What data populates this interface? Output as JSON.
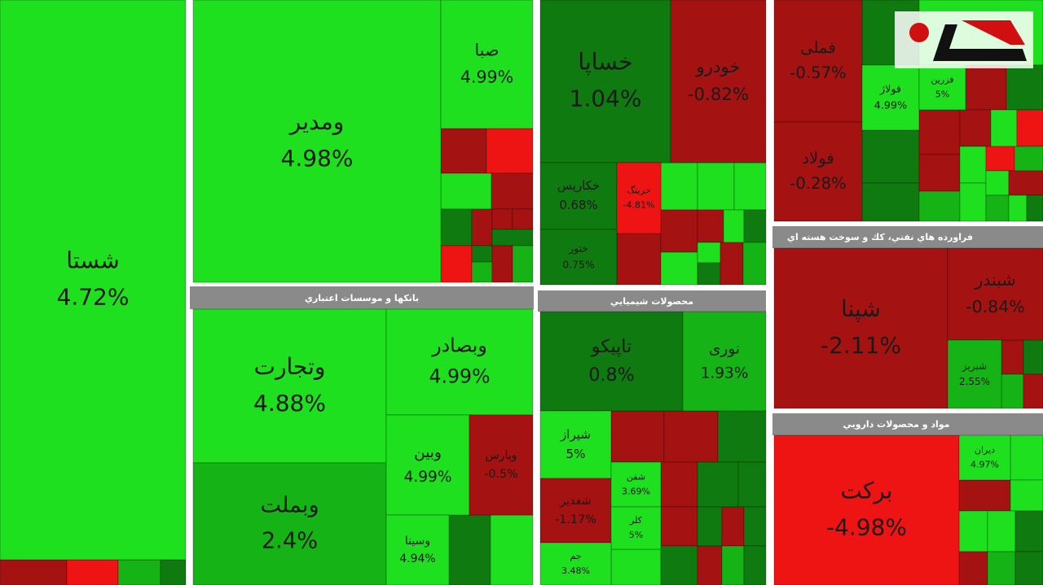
{
  "chart_data": {
    "type": "treemap",
    "groups": [
      {
        "categories": [
          "شستا"
        ],
        "values": [
          4.72
        ],
        "value_labels": [
          "4.72%"
        ]
      },
      {
        "categories": [
          "ومدیر",
          "صبا"
        ],
        "values": [
          4.98,
          4.99
        ],
        "value_labels": [
          "4.98%",
          "4.99%"
        ]
      },
      {
        "name": "بانکها و موسسات اعتباري",
        "categories": [
          "وتجارت",
          "وبصادر",
          "وبملت",
          "وبین",
          "وپارس",
          "وسینا"
        ],
        "values": [
          4.88,
          4.99,
          2.4,
          4.99,
          -0.5,
          4.94
        ],
        "value_labels": [
          "4.88%",
          "4.99%",
          "2.4%",
          "4.99%",
          "-0.5%",
          "4.94%"
        ]
      },
      {
        "categories": [
          "خساپا",
          "خودرو",
          "خکاریس",
          "ختور",
          "خرینگ"
        ],
        "values": [
          1.04,
          -0.82,
          0.68,
          0.75,
          -4.81
        ],
        "value_labels": [
          "1.04%",
          "-0.82%",
          "0.68%",
          "0.75%",
          "-4.81%"
        ]
      },
      {
        "name": "محصولات شيميايي",
        "categories": [
          "تاپیکو",
          "نوری",
          "شیراز",
          "شغدیر",
          "شفن",
          "کلر",
          "جم"
        ],
        "values": [
          0.8,
          1.93,
          5,
          -1.17,
          3.69,
          5,
          3.48
        ],
        "value_labels": [
          "0.8%",
          "1.93%",
          "5%",
          "-1.17%",
          "3.69%",
          "5%",
          "3.48%"
        ]
      },
      {
        "categories": [
          "فملی",
          "فولاد",
          "فولاژ",
          "فزرین"
        ],
        "values": [
          -0.57,
          -0.28,
          4.99,
          5
        ],
        "value_labels": [
          "-0.57%",
          "-0.28%",
          "4.99%",
          "5%"
        ]
      },
      {
        "name": "فراورده هاي نفتي، كك و سوخت هسته اي",
        "categories": [
          "شپنا",
          "شبندر",
          "شبریز"
        ],
        "values": [
          -2.11,
          -0.84,
          2.55
        ],
        "value_labels": [
          "-2.11%",
          "-0.84%",
          "2.55%"
        ]
      },
      {
        "name": "مواد و محصولات دارويي",
        "categories": [
          "برکت",
          "دیران"
        ],
        "values": [
          -4.98,
          4.97
        ],
        "value_labels": [
          "-4.98%",
          "4.97%"
        ]
      }
    ]
  }
}
